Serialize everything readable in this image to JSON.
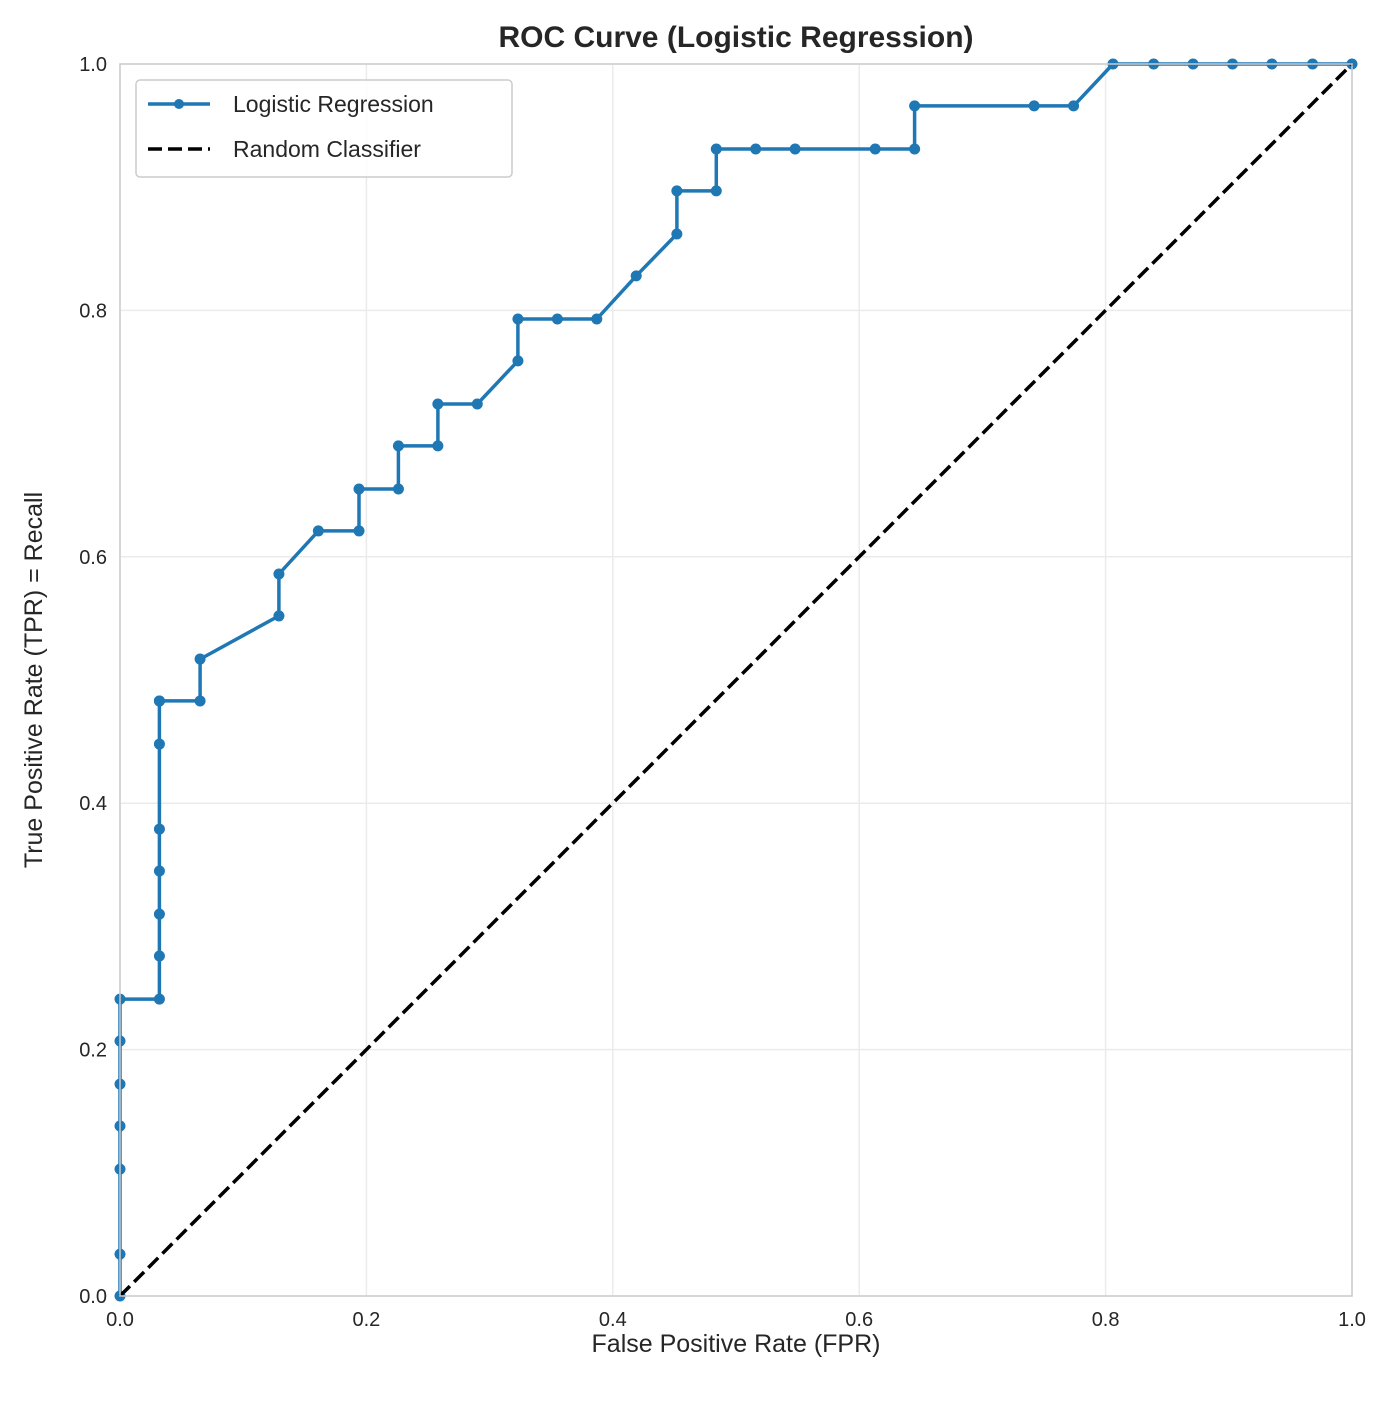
{
  "chart_data": {
    "type": "line",
    "title": "ROC Curve (Logistic Regression)",
    "xlabel": "False Positive Rate (FPR)",
    "ylabel": "True Positive Rate (TPR) = Recall",
    "xlim": [
      0.0,
      1.0
    ],
    "ylim": [
      0.0,
      1.0
    ],
    "xticks": [
      "0.0",
      "0.2",
      "0.4",
      "0.6",
      "0.8",
      "1.0"
    ],
    "yticks": [
      "0.0",
      "0.2",
      "0.4",
      "0.6",
      "0.8",
      "1.0"
    ],
    "grid": true,
    "legend_position": "top-left",
    "series": [
      {
        "name": "Logistic Regression",
        "color": "#1f77b4",
        "style": "solid",
        "markers": true,
        "x": [
          0.0,
          0.0,
          0.0,
          0.0,
          0.0,
          0.0,
          0.0,
          0.032,
          0.032,
          0.032,
          0.032,
          0.032,
          0.032,
          0.032,
          0.032,
          0.065,
          0.065,
          0.129,
          0.129,
          0.161,
          0.194,
          0.194,
          0.226,
          0.226,
          0.258,
          0.258,
          0.29,
          0.323,
          0.323,
          0.355,
          0.387,
          0.419,
          0.452,
          0.452,
          0.484,
          0.484,
          0.516,
          0.548,
          0.613,
          0.645,
          0.645,
          0.742,
          0.774,
          0.806,
          0.839,
          0.871,
          0.903,
          0.935,
          0.968,
          1.0
        ],
        "y": [
          0.0,
          0.034,
          0.103,
          0.138,
          0.172,
          0.207,
          0.241,
          0.241,
          0.276,
          0.31,
          0.345,
          0.379,
          0.448,
          0.483,
          0.483,
          0.483,
          0.517,
          0.552,
          0.586,
          0.621,
          0.621,
          0.655,
          0.655,
          0.69,
          0.69,
          0.724,
          0.724,
          0.759,
          0.793,
          0.793,
          0.793,
          0.828,
          0.862,
          0.897,
          0.897,
          0.931,
          0.931,
          0.931,
          0.931,
          0.931,
          0.966,
          0.966,
          0.966,
          1.0,
          1.0,
          1.0,
          1.0,
          1.0,
          1.0,
          1.0
        ]
      },
      {
        "name": "Random Classifier",
        "color": "#000000",
        "style": "dashed",
        "markers": false,
        "x": [
          0.0,
          1.0
        ],
        "y": [
          0.0,
          1.0
        ]
      }
    ]
  }
}
